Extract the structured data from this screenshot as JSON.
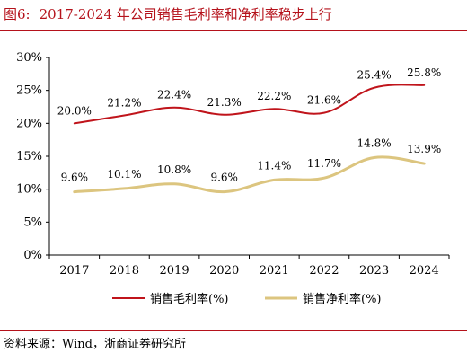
{
  "figure": {
    "number": "图6:",
    "title": "2017-2024 年公司销售毛利率和净利率稳步上行",
    "source": "资料来源：Wind，浙商证券研究所"
  },
  "chart_data": {
    "type": "line",
    "categories": [
      "2017",
      "2018",
      "2019",
      "2020",
      "2021",
      "2022",
      "2023",
      "2024"
    ],
    "series": [
      {
        "name": "销售毛利率(%)",
        "color": "#c0141b",
        "values": [
          20.0,
          21.2,
          22.4,
          21.3,
          22.2,
          21.6,
          25.4,
          25.8
        ],
        "labels": [
          "20.0%",
          "21.2%",
          "22.4%",
          "21.3%",
          "22.2%",
          "21.6%",
          "25.4%",
          "25.8%"
        ]
      },
      {
        "name": "销售净利率(%)",
        "color": "#dcc57f",
        "values": [
          9.6,
          10.1,
          10.8,
          9.6,
          11.4,
          11.7,
          14.8,
          13.9
        ],
        "labels": [
          "9.6%",
          "10.1%",
          "10.8%",
          "9.6%",
          "11.4%",
          "11.7%",
          "14.8%",
          "13.9%"
        ]
      }
    ],
    "ylim": [
      0,
      30
    ],
    "yticks": [
      0,
      5,
      10,
      15,
      20,
      25,
      30
    ],
    "ytick_labels": [
      "0%",
      "5%",
      "10%",
      "15%",
      "20%",
      "25%",
      "30%"
    ],
    "grid": false,
    "legend": "bottom"
  }
}
